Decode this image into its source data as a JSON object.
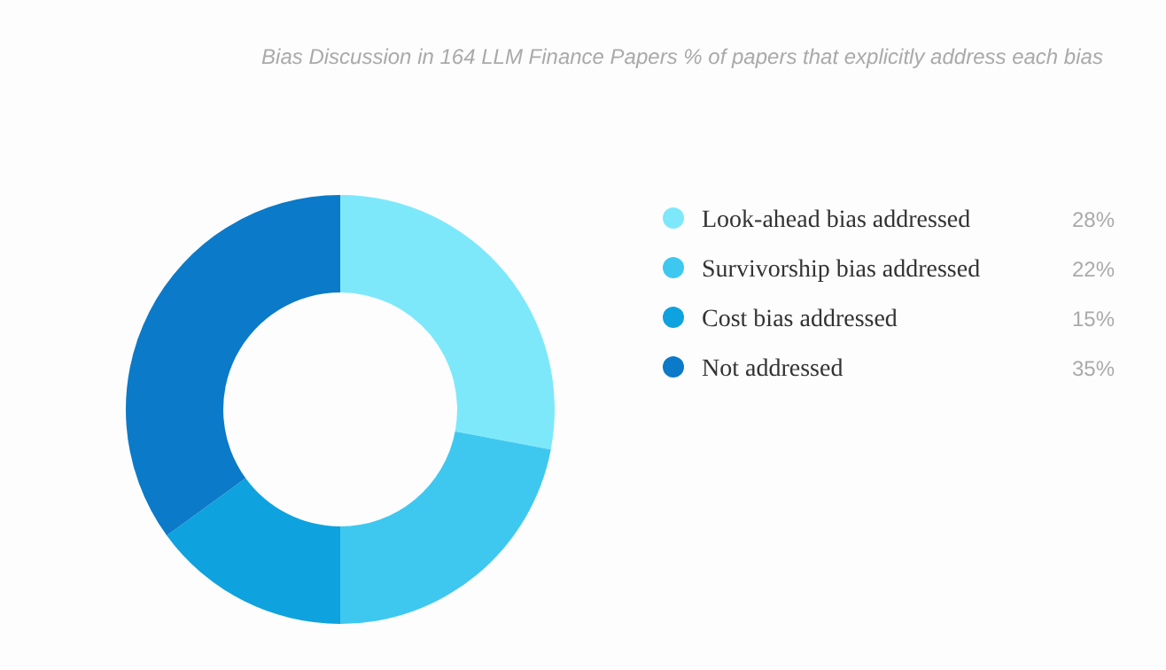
{
  "chart_data": {
    "type": "donut",
    "title": "Bias Discussion in 164 LLM Finance Papers % of papers that explicitly address each bias",
    "categories": [
      "Look-ahead bias addressed",
      "Survivorship bias addressed",
      "Cost bias addressed",
      "Not addressed"
    ],
    "values": [
      28,
      22,
      15,
      35
    ],
    "colors": [
      "#7ee8fb",
      "#3ec8f0",
      "#0ea2de",
      "#0b7ac8"
    ],
    "value_labels": [
      "28%",
      "22%",
      "15%",
      "35%"
    ],
    "legend": "right"
  }
}
